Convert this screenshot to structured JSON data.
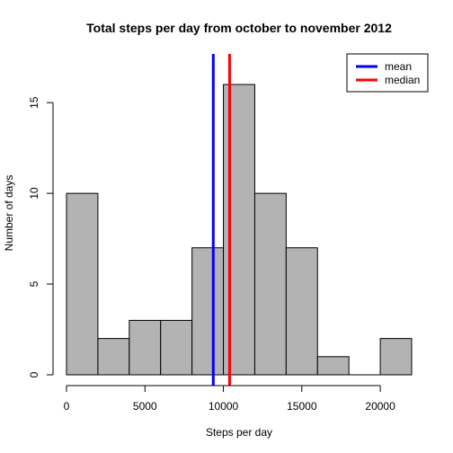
{
  "chart_data": {
    "type": "histogram",
    "title": "Total steps per day from october to november 2012",
    "xlabel": "Steps per day",
    "ylabel": "Number of days",
    "bin_edges": [
      0,
      2000,
      4000,
      6000,
      8000,
      10000,
      12000,
      14000,
      16000,
      18000,
      20000,
      22000
    ],
    "counts": [
      10,
      2,
      3,
      3,
      7,
      16,
      10,
      7,
      1,
      0,
      2
    ],
    "bar_color": "#b3b3b3",
    "bar_edge_color": "#000000",
    "xlim": [
      0,
      22000
    ],
    "ylim": [
      0,
      16
    ],
    "x_ticks": [
      0,
      5000,
      10000,
      15000,
      20000
    ],
    "y_ticks": [
      0,
      5,
      10,
      15
    ],
    "x_tick_labels": [
      "0",
      "5000",
      "10000",
      "15000",
      "20000"
    ],
    "y_tick_labels": [
      "0",
      "5",
      "10",
      "15"
    ],
    "reference_lines": [
      {
        "name": "mean",
        "value": 9354,
        "color": "#0000ff"
      },
      {
        "name": "median",
        "value": 10395,
        "color": "#ff0000"
      }
    ],
    "legend": {
      "position": "top-right",
      "entries": [
        {
          "label": "mean",
          "color": "#0000ff"
        },
        {
          "label": "median",
          "color": "#ff0000"
        }
      ]
    },
    "grid": false
  }
}
